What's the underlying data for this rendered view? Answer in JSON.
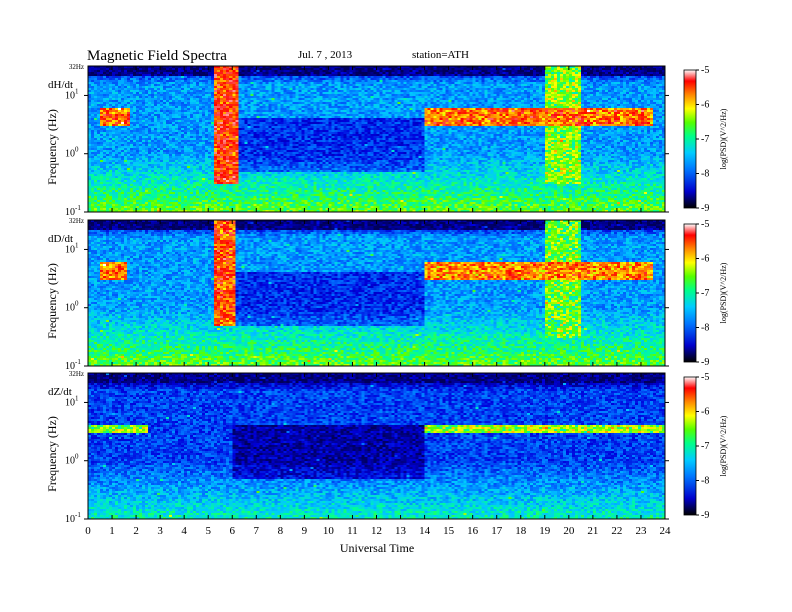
{
  "header": {
    "title": "Magnetic  Field  Spectra",
    "date": "Jul.  7  , 2013",
    "station": "station=ATH"
  },
  "chart_data": {
    "type": "heatmap",
    "xlabel": "Universal Time",
    "ylabel": "Frequency  (Hz)",
    "xlim": [
      0,
      24
    ],
    "x_ticks": [
      "0",
      "1",
      "2",
      "3",
      "4",
      "5",
      "6",
      "7",
      "8",
      "9",
      "10",
      "11",
      "12",
      "13",
      "14",
      "15",
      "16",
      "17",
      "18",
      "19",
      "20",
      "21",
      "22",
      "23",
      "24"
    ],
    "y_scale": "log",
    "ylim": [
      0.1,
      32
    ],
    "y_top_label": "32Hz",
    "y_ticks": [
      {
        "value": 10,
        "base": "10",
        "exp": "1"
      },
      {
        "value": 1,
        "base": "10",
        "exp": "0"
      },
      {
        "value": 0.1,
        "base": "10",
        "exp": "-1"
      }
    ],
    "colorbar": {
      "label": "log(PSD)(V^2/Hz)",
      "ticks": [
        "-5",
        "-6",
        "-7",
        "-8",
        "-9"
      ],
      "range": [
        -9,
        -5
      ],
      "colors": [
        "#000066",
        "#0000ff",
        "#00aaff",
        "#00ffcc",
        "#44ff00",
        "#ffff00",
        "#ff8800",
        "#ff0000",
        "#ffffff"
      ]
    },
    "panels": [
      {
        "label": "dH/dt",
        "background_level": -7.8,
        "features": [
          {
            "name": "5.5-6.5 UT broadband burst",
            "start": 5.3,
            "end": 6.3,
            "freq_range": [
              0.3,
              32
            ],
            "level": -5.8
          },
          {
            "name": "0-1.8 UT 4 Hz band",
            "start": 0.5,
            "end": 1.8,
            "freq_range": [
              3,
              6
            ],
            "level": -6.0
          },
          {
            "name": "14-23.5 UT 4 Hz band",
            "start": 14.0,
            "end": 23.5,
            "freq_range": [
              3,
              6
            ],
            "level": -6.0
          },
          {
            "name": "19-20.5 UT broadband activity",
            "start": 19.0,
            "end": 20.5,
            "freq_range": [
              0.3,
              32
            ],
            "level": -6.8
          }
        ]
      },
      {
        "label": "dD/dt",
        "background_level": -7.8,
        "features": [
          {
            "name": "5.5-6 UT broadband burst",
            "start": 5.3,
            "end": 6.1,
            "freq_range": [
              0.5,
              32
            ],
            "level": -5.9
          },
          {
            "name": "0-1.6 UT 4 Hz band",
            "start": 0.5,
            "end": 1.6,
            "freq_range": [
              3,
              6
            ],
            "level": -6.1
          },
          {
            "name": "14-23.5 UT 4 Hz band",
            "start": 14.0,
            "end": 23.5,
            "freq_range": [
              3,
              6
            ],
            "level": -6.1
          },
          {
            "name": "19-20.5 UT broadband activity",
            "start": 19.0,
            "end": 20.5,
            "freq_range": [
              0.3,
              32
            ],
            "level": -6.9
          }
        ]
      },
      {
        "label": "dZ/dt",
        "background_level": -8.2,
        "features": [
          {
            "name": "0-2.5 UT 4 Hz band",
            "start": 0.0,
            "end": 2.5,
            "freq_range": [
              3,
              4
            ],
            "level": -6.8
          },
          {
            "name": "14-24 UT 4 Hz band",
            "start": 14.0,
            "end": 24.0,
            "freq_range": [
              3,
              4
            ],
            "level": -6.7
          }
        ]
      }
    ]
  }
}
